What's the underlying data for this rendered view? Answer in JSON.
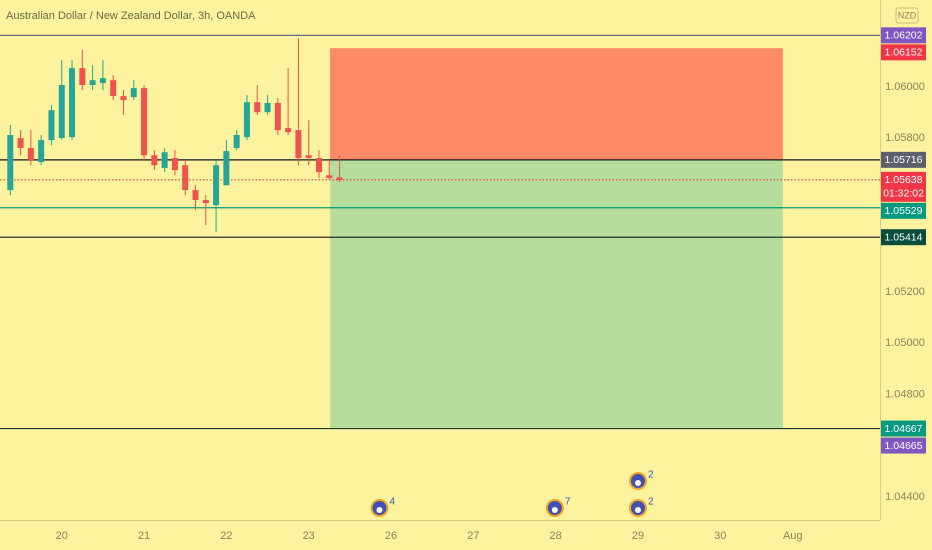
{
  "chart_data": {
    "type": "candlestick",
    "title": "Australian Dollar / New Zealand Dollar, 3h, OANDA",
    "currency": "NZD",
    "up_color": "#26a69a",
    "down_color": "#ef5350",
    "x": [
      -0.625,
      -0.5,
      -0.375,
      -0.25,
      -0.125,
      0,
      0.125,
      0.25,
      0.375,
      0.5,
      0.625,
      0.75,
      0.875,
      1,
      1.125,
      1.25,
      1.375,
      1.5,
      1.625,
      1.75,
      1.875,
      2,
      2.125,
      2.25,
      2.375,
      2.5,
      2.625,
      2.75,
      2.875,
      3,
      3.125,
      3.25,
      3.375
    ],
    "open": [
      1.05598,
      1.05801,
      1.05762,
      1.05707,
      1.05793,
      1.05801,
      1.05805,
      1.06074,
      1.06008,
      1.06016,
      1.06027,
      1.05965,
      1.05961,
      1.05996,
      1.05734,
      1.05684,
      1.05723,
      1.05695,
      1.05598,
      1.05559,
      1.05539,
      1.05617,
      1.05762,
      1.05805,
      1.05941,
      1.05902,
      1.05938,
      1.0584,
      1.05832,
      1.05734,
      1.05723,
      1.05656,
      1.05648
    ],
    "high": [
      1.05852,
      1.05832,
      1.05832,
      1.05813,
      1.0593,
      1.06105,
      1.06105,
      1.06145,
      1.06086,
      1.06105,
      1.06047,
      1.05988,
      1.06027,
      1.06008,
      1.05754,
      1.05762,
      1.05754,
      1.05715,
      1.05617,
      1.05578,
      1.05715,
      1.05793,
      1.05832,
      1.05969,
      1.06008,
      1.05969,
      1.05957,
      1.06074,
      1.06191,
      1.05871,
      1.05754,
      1.05715,
      1.05734
    ],
    "low": [
      1.05578,
      1.05734,
      1.05695,
      1.05695,
      1.05773,
      1.05793,
      1.05793,
      1.05988,
      1.05988,
      1.05988,
      1.05949,
      1.05891,
      1.05949,
      1.05715,
      1.05676,
      1.05668,
      1.05656,
      1.05578,
      1.0552,
      1.05461,
      1.05434,
      1.05617,
      1.05754,
      1.05793,
      1.05891,
      1.05891,
      1.05813,
      1.05813,
      1.05695,
      1.05695,
      1.05645,
      1.05637,
      1.05629
    ],
    "close": [
      1.05813,
      1.05762,
      1.05715,
      1.05793,
      1.0591,
      1.06008,
      1.06074,
      1.06008,
      1.06027,
      1.06035,
      1.05965,
      1.05949,
      1.05996,
      1.05734,
      1.05695,
      1.05746,
      1.05676,
      1.05598,
      1.05559,
      1.05547,
      1.05695,
      1.0575,
      1.05813,
      1.05941,
      1.05902,
      1.05938,
      1.05832,
      1.05824,
      1.05723,
      1.05723,
      1.05668,
      1.05645,
      1.05637
    ],
    "xlim": [
      -0.75,
      9.94
    ],
    "xticks": [
      {
        "value": 0,
        "label": "20"
      },
      {
        "value": 1,
        "label": "21"
      },
      {
        "value": 2,
        "label": "22"
      },
      {
        "value": 3,
        "label": "23"
      },
      {
        "value": 4,
        "label": "26"
      },
      {
        "value": 5,
        "label": "27"
      },
      {
        "value": 6,
        "label": "28"
      },
      {
        "value": 7,
        "label": "29"
      },
      {
        "value": 8,
        "label": "30"
      },
      {
        "value": 8.88,
        "label": "Aug"
      }
    ],
    "ylim": [
      1.0431,
      1.0634
    ],
    "yticks": [
      {
        "value": 1.06,
        "label": "1.06000"
      },
      {
        "value": 1.058,
        "label": "1.05800"
      },
      {
        "value": 1.052,
        "label": "1.05200"
      },
      {
        "value": 1.05,
        "label": "1.05000"
      },
      {
        "value": 1.048,
        "label": "1.04800"
      },
      {
        "value": 1.044,
        "label": "1.04400"
      }
    ],
    "position": {
      "x_start": 3.26,
      "x_end": 8.76,
      "entry": 1.05716,
      "stop": 1.06152,
      "target": 1.04667,
      "stop_color": "#ff8a65",
      "target_color": "#b7dd9c"
    },
    "levels": [
      {
        "value": 1.06202,
        "color": "#7e57c2",
        "line": true,
        "line_color": "#6b6b8a"
      },
      {
        "value": 1.06152,
        "color": "#f23645",
        "line": false
      },
      {
        "value": 1.05716,
        "color": "#5d606b",
        "line": true,
        "line_color": "#131722"
      },
      {
        "value": 1.05638,
        "color": "#f23645",
        "line": true,
        "line_color": "#f23645",
        "dotted": true,
        "countdown": "01:32:02"
      },
      {
        "value": 1.05529,
        "color": "#089981",
        "line": true,
        "line_color": "#089981"
      },
      {
        "value": 1.05414,
        "color": "#0b4d3c",
        "line": true,
        "line_color": "#131722"
      },
      {
        "value": 1.04667,
        "color": "#089981",
        "line": true,
        "line_color": "#1e3a30"
      },
      {
        "value": 1.04665,
        "color": "#7e57c2",
        "line": false
      }
    ],
    "events": [
      {
        "x": 3.86,
        "count": 4
      },
      {
        "x": 5.99,
        "count": 7
      },
      {
        "x": 7.0,
        "count": 2
      },
      {
        "x": 7.0,
        "count": 2
      }
    ]
  }
}
